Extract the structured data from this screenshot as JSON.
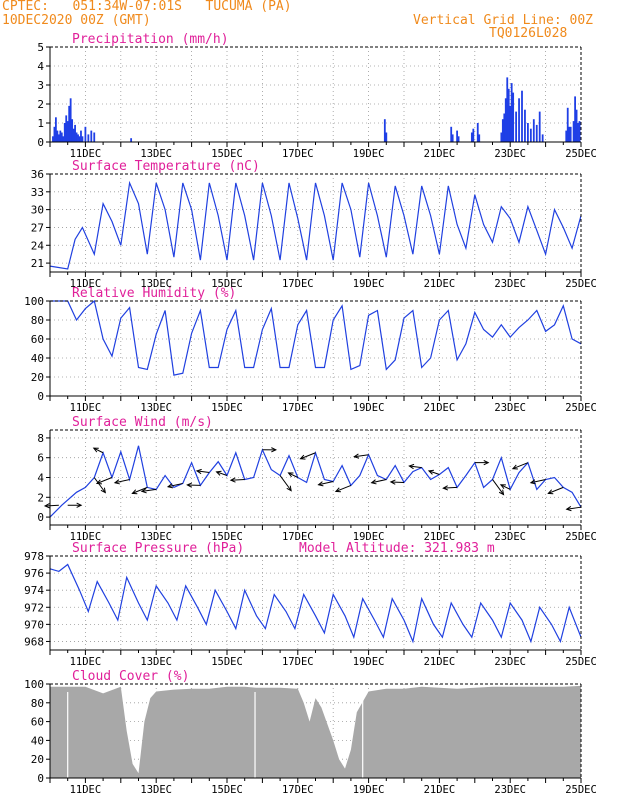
{
  "header": {
    "line1": "CPTEC:   051:34W-07:01S   TUCUMA (PA)",
    "line2": "10DEC2020 00Z (GMT)",
    "right1": "Vertical Grid Line: 00Z",
    "right2": "TQ0126L028"
  },
  "chart_data": [
    {
      "type": "bar",
      "title": "Precipitation (mm/h)",
      "x_ticks": [
        "11DEC",
        "13DEC",
        "15DEC",
        "17DEC",
        "19DEC",
        "21DEC",
        "23DEC",
        "25DEC"
      ],
      "ylim": [
        0,
        5
      ],
      "y_ticks": [
        0,
        1,
        2,
        3,
        4,
        5
      ],
      "grid": true,
      "series": [
        {
          "x_hours": [
            2,
            3,
            4,
            5,
            6,
            7,
            8,
            9,
            10,
            11,
            12,
            13,
            14,
            15,
            16,
            17,
            18,
            19,
            20,
            21,
            22,
            24,
            26,
            28,
            30,
            55,
            227,
            228,
            272,
            273,
            276,
            277,
            286,
            287,
            290,
            291,
            306,
            307,
            308,
            309,
            310,
            311,
            312,
            313,
            314,
            316,
            318,
            320,
            322,
            324,
            326,
            328,
            330,
            332,
            334,
            350,
            351,
            352,
            353,
            355,
            356,
            357,
            358,
            359
          ],
          "values": [
            0.3,
            0.8,
            1.3,
            0.6,
            0.4,
            0.6,
            0.5,
            0.3,
            1.0,
            1.4,
            1.1,
            1.9,
            2.3,
            1.2,
            0.7,
            0.9,
            0.5,
            0.4,
            0.3,
            0.6,
            0.3,
            0.8,
            0.4,
            0.6,
            0.5,
            0.2,
            1.2,
            0.5,
            0.8,
            0.4,
            0.6,
            0.3,
            0.5,
            0.7,
            1.0,
            0.4,
            0.5,
            1.2,
            1.5,
            2.3,
            3.4,
            2.8,
            1.9,
            3.1,
            2.6,
            1.6,
            2.3,
            2.7,
            1.7,
            1.0,
            0.7,
            1.2,
            0.9,
            1.6,
            0.4,
            0.6,
            1.8,
            0.8,
            0.8,
            1.1,
            2.4,
            1.7,
            1.0,
            1.1
          ]
        }
      ]
    },
    {
      "type": "line",
      "title": "Surface Temperature (nC)",
      "x_ticks": [
        "11DEC",
        "13DEC",
        "15DEC",
        "17DEC",
        "19DEC",
        "21DEC",
        "23DEC",
        "25DEC"
      ],
      "ylim": [
        19.5,
        36
      ],
      "y_ticks": [
        21,
        24,
        27,
        30,
        33,
        36
      ],
      "grid": true,
      "series": [
        {
          "x_hours": [
            0,
            12,
            17,
            22,
            30,
            36,
            42,
            48,
            54,
            60,
            66,
            72,
            78,
            84,
            90,
            96,
            102,
            108,
            114,
            120,
            126,
            132,
            138,
            144,
            150,
            156,
            162,
            168,
            174,
            180,
            186,
            192,
            198,
            204,
            210,
            216,
            222,
            228,
            234,
            240,
            246,
            252,
            258,
            264,
            270,
            276,
            282,
            288,
            294,
            300,
            306,
            312,
            318,
            324,
            330,
            336,
            342,
            348,
            354,
            360
          ],
          "values": [
            20.5,
            20.0,
            25.0,
            27.0,
            22.5,
            31.0,
            28.0,
            24.0,
            34.5,
            31.0,
            22.5,
            34.5,
            30.0,
            22.0,
            34.5,
            30.0,
            21.5,
            34.5,
            29.0,
            21.5,
            34.5,
            29.0,
            21.5,
            34.5,
            29.0,
            21.5,
            34.5,
            28.5,
            21.5,
            34.5,
            29.0,
            21.5,
            34.5,
            30.0,
            22.0,
            34.5,
            29.0,
            22.0,
            34.0,
            29.0,
            22.5,
            34.0,
            29.0,
            22.5,
            34.0,
            27.5,
            23.5,
            32.5,
            27.5,
            24.5,
            30.5,
            28.5,
            24.5,
            30.5,
            26.5,
            22.5,
            30.0,
            27.0,
            23.5,
            29.0
          ]
        }
      ]
    },
    {
      "type": "line",
      "title": "Relative Humidity (%)",
      "x_ticks": [
        "11DEC",
        "13DEC",
        "15DEC",
        "17DEC",
        "19DEC",
        "21DEC",
        "23DEC",
        "25DEC"
      ],
      "ylim": [
        0,
        100
      ],
      "y_ticks": [
        0,
        20,
        40,
        60,
        80,
        100
      ],
      "grid": true,
      "series": [
        {
          "x_hours": [
            0,
            12,
            18,
            24,
            30,
            36,
            42,
            48,
            54,
            60,
            66,
            72,
            78,
            84,
            90,
            96,
            102,
            108,
            114,
            120,
            126,
            132,
            138,
            144,
            150,
            156,
            162,
            168,
            174,
            180,
            186,
            192,
            198,
            204,
            210,
            216,
            222,
            228,
            234,
            240,
            246,
            252,
            258,
            264,
            270,
            276,
            282,
            288,
            294,
            300,
            306,
            312,
            318,
            324,
            330,
            336,
            342,
            348,
            354,
            360
          ],
          "values": [
            100,
            100,
            80,
            92,
            100,
            60,
            42,
            82,
            93,
            30,
            28,
            65,
            90,
            22,
            24,
            66,
            90,
            30,
            30,
            70,
            90,
            30,
            30,
            70,
            92,
            30,
            30,
            75,
            90,
            30,
            30,
            80,
            95,
            28,
            32,
            85,
            90,
            28,
            38,
            82,
            90,
            30,
            40,
            80,
            90,
            38,
            55,
            88,
            70,
            62,
            75,
            62,
            72,
            80,
            90,
            68,
            75,
            95,
            60,
            55
          ]
        }
      ]
    },
    {
      "type": "line",
      "title": "Surface Wind (m/s)",
      "x_ticks": [
        "11DEC",
        "13DEC",
        "15DEC",
        "17DEC",
        "19DEC",
        "21DEC",
        "23DEC",
        "25DEC"
      ],
      "ylim": [
        -0.8,
        8.8
      ],
      "y_ticks": [
        0,
        2,
        4,
        6,
        8
      ],
      "grid": true,
      "series": [
        {
          "x_hours": [
            0,
            8,
            18,
            24,
            30,
            36,
            42,
            48,
            54,
            60,
            66,
            72,
            78,
            84,
            90,
            96,
            102,
            108,
            114,
            120,
            126,
            132,
            138,
            144,
            150,
            156,
            162,
            168,
            174,
            180,
            186,
            192,
            198,
            204,
            210,
            216,
            222,
            228,
            234,
            240,
            246,
            252,
            258,
            264,
            270,
            276,
            282,
            288,
            294,
            300,
            306,
            312,
            318,
            324,
            330,
            336,
            342,
            348,
            354,
            360
          ],
          "values": [
            0,
            1.2,
            2.5,
            3.0,
            4.0,
            6.5,
            4.0,
            6.6,
            3.8,
            7.2,
            3.0,
            2.8,
            4.2,
            3.0,
            3.4,
            5.5,
            3.2,
            4.5,
            5.6,
            4.2,
            6.5,
            3.8,
            4.0,
            6.8,
            4.8,
            4.2,
            6.2,
            4.0,
            3.5,
            6.5,
            3.8,
            3.6,
            5.2,
            3.2,
            4.2,
            6.3,
            4.2,
            3.8,
            5.2,
            3.5,
            4.6,
            5.0,
            3.8,
            4.3,
            5.0,
            3.0,
            4.2,
            5.5,
            3.0,
            3.8,
            6.0,
            2.8,
            4.5,
            5.5,
            2.8,
            3.8,
            4.0,
            3.0,
            2.5,
            1.0
          ]
        }
      ],
      "arrows_hours": [
        6,
        12,
        30,
        36,
        42,
        54,
        66,
        72,
        90,
        102,
        108,
        120,
        132,
        144,
        156,
        168,
        180,
        192,
        204,
        216,
        228,
        240,
        252,
        264,
        276,
        288,
        300,
        312,
        324,
        336,
        348,
        360
      ]
    },
    {
      "type": "line",
      "title": "Surface Pressure (hPa)",
      "annotation": "Model Altitude: 321.983 m",
      "x_ticks": [
        "11DEC",
        "13DEC",
        "15DEC",
        "17DEC",
        "19DEC",
        "21DEC",
        "23DEC",
        "25DEC"
      ],
      "ylim": [
        967,
        978
      ],
      "y_ticks": [
        968,
        970,
        972,
        974,
        976,
        978
      ],
      "grid": true,
      "series": [
        {
          "x_hours": [
            0,
            6,
            12,
            20,
            26,
            32,
            40,
            46,
            52,
            60,
            66,
            72,
            80,
            86,
            92,
            100,
            106,
            112,
            120,
            126,
            132,
            140,
            146,
            152,
            160,
            166,
            172,
            180,
            186,
            192,
            200,
            206,
            212,
            220,
            226,
            232,
            240,
            246,
            252,
            260,
            266,
            272,
            280,
            286,
            292,
            300,
            306,
            312,
            320,
            326,
            332,
            340,
            346,
            352,
            360
          ],
          "values": [
            976.5,
            976.2,
            977.0,
            974.0,
            971.5,
            975.0,
            972.5,
            970.5,
            975.5,
            972.5,
            970.5,
            974.5,
            972.5,
            970.5,
            974.5,
            972.0,
            970.0,
            974.0,
            971.5,
            969.5,
            974.0,
            971.0,
            969.5,
            973.5,
            971.5,
            969.5,
            973.5,
            971.0,
            969.0,
            973.5,
            971.0,
            968.5,
            973.0,
            970.5,
            968.5,
            973.0,
            970.5,
            968.0,
            973.0,
            970.0,
            968.5,
            972.5,
            970.0,
            968.5,
            972.5,
            970.5,
            968.5,
            972.5,
            970.5,
            968.0,
            972.0,
            970.0,
            968.0,
            972.0,
            968.5
          ]
        }
      ]
    },
    {
      "type": "bar",
      "title": "Cloud Cover (%)",
      "x_ticks": [
        "11DEC",
        "13DEC",
        "15DEC",
        "17DEC",
        "19DEC",
        "21DEC",
        "23DEC",
        "25DEC"
      ],
      "ylim": [
        0,
        100
      ],
      "y_ticks": [
        0,
        20,
        40,
        60,
        80,
        100
      ],
      "grid": true,
      "color": "#a8a8a8",
      "series": [
        {
          "x_hours": [
            0,
            24,
            36,
            48,
            52,
            56,
            60,
            64,
            68,
            72,
            84,
            96,
            108,
            120,
            132,
            140,
            144,
            156,
            168,
            172,
            176,
            180,
            184,
            192,
            196,
            200,
            204,
            208,
            216,
            228,
            240,
            252,
            264,
            276,
            288,
            300,
            312,
            324,
            336,
            348,
            360
          ],
          "values": [
            97,
            97,
            90,
            97,
            50,
            15,
            5,
            60,
            85,
            92,
            94,
            95,
            95,
            97,
            97,
            96,
            96,
            96,
            95,
            80,
            60,
            85,
            75,
            40,
            20,
            10,
            30,
            70,
            92,
            95,
            95,
            97,
            96,
            95,
            96,
            97,
            97,
            97,
            97,
            97,
            98
          ]
        }
      ]
    }
  ]
}
